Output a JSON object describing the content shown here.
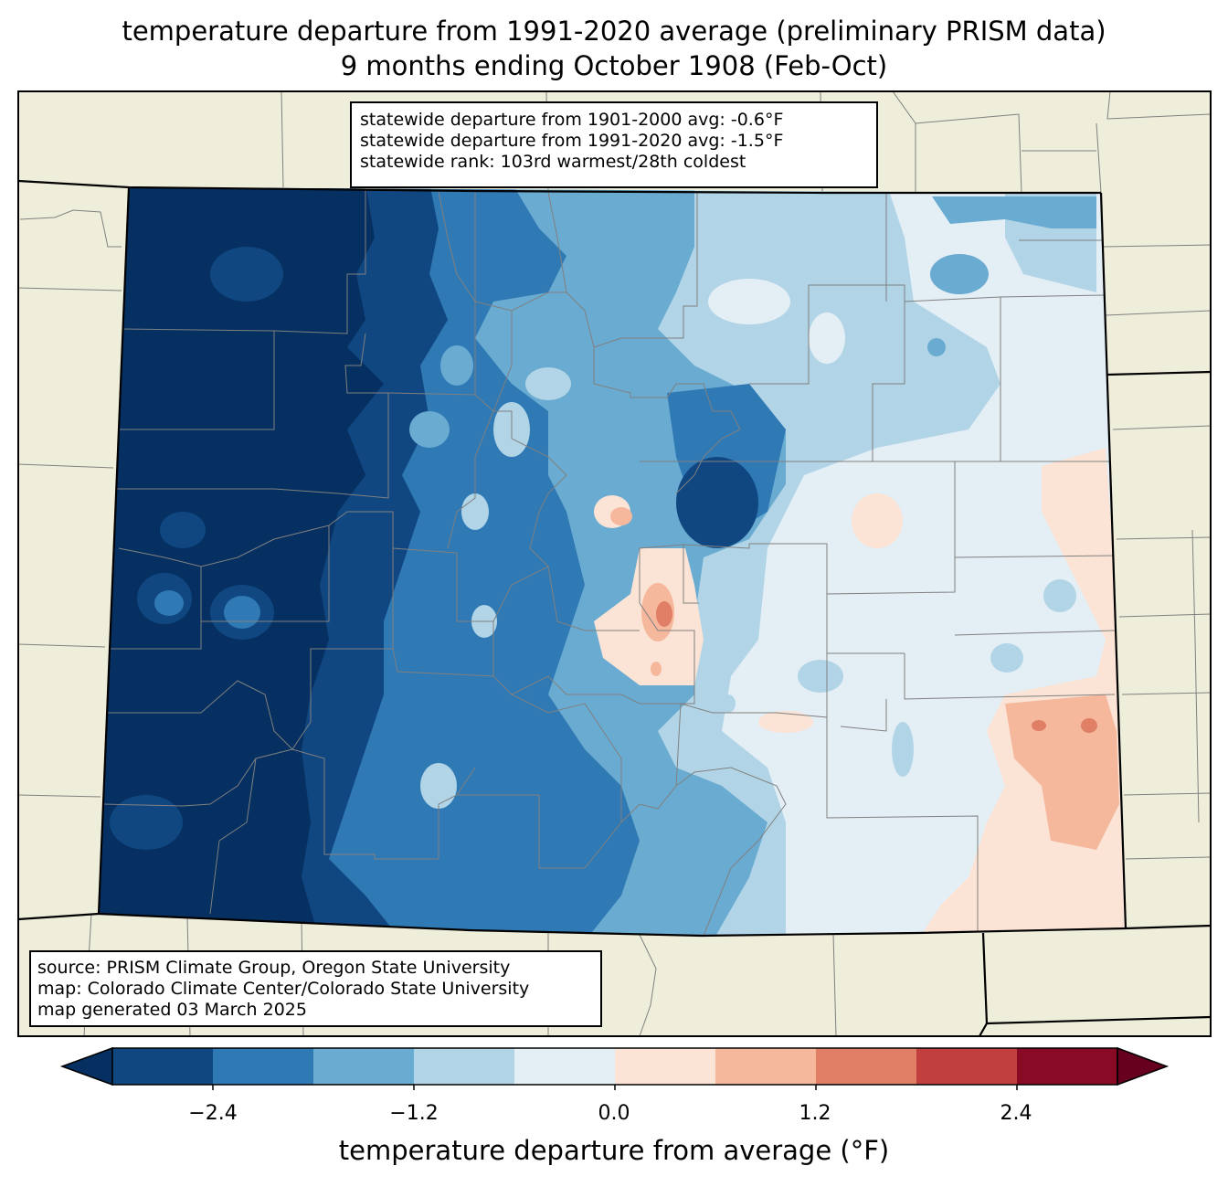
{
  "title": {
    "line1": "temperature departure from 1991-2020 average (preliminary PRISM data)",
    "line2": "9 months ending October 1908 (Feb-Oct)"
  },
  "stats": {
    "line1": "statewide departure from 1901-2000 avg: -0.6°F",
    "line2": "statewide departure from 1991-2020 avg: -1.5°F",
    "line3": "statewide rank: 103rd warmest/28th coldest"
  },
  "source": {
    "line1": "source: PRISM Climate Group, Oregon State University",
    "line2": "map: Colorado Climate Center/Colorado State University",
    "line3": "map generated 03 March 2025"
  },
  "colorbar": {
    "label": "temperature departure from average (°F)",
    "ticks": [
      "−2.4",
      "−1.2",
      "0.0",
      "1.2",
      "2.4"
    ],
    "bins": [
      {
        "min": null,
        "max": -3.0,
        "color": "#053061"
      },
      {
        "min": -3.0,
        "max": -2.4,
        "color": "#114781"
      },
      {
        "min": -2.4,
        "max": -1.8,
        "color": "#2f79b5"
      },
      {
        "min": -1.8,
        "max": -1.2,
        "color": "#6aabd1"
      },
      {
        "min": -1.2,
        "max": -0.6,
        "color": "#b1d5e7"
      },
      {
        "min": -0.6,
        "max": 0.0,
        "color": "#e4eef5"
      },
      {
        "min": 0.0,
        "max": 0.6,
        "color": "#fbe4d6"
      },
      {
        "min": 0.6,
        "max": 1.2,
        "color": "#f6b89c"
      },
      {
        "min": 1.2,
        "max": 1.8,
        "color": "#e07e66"
      },
      {
        "min": 1.8,
        "max": 2.4,
        "color": "#c13f3e"
      },
      {
        "min": 2.4,
        "max": 3.0,
        "color": "#890a24"
      },
      {
        "min": 3.0,
        "max": null,
        "color": "#67001f"
      }
    ]
  },
  "colors": {
    "land": "#efeedb",
    "county_line": "#808080",
    "state_line": "#000000"
  }
}
